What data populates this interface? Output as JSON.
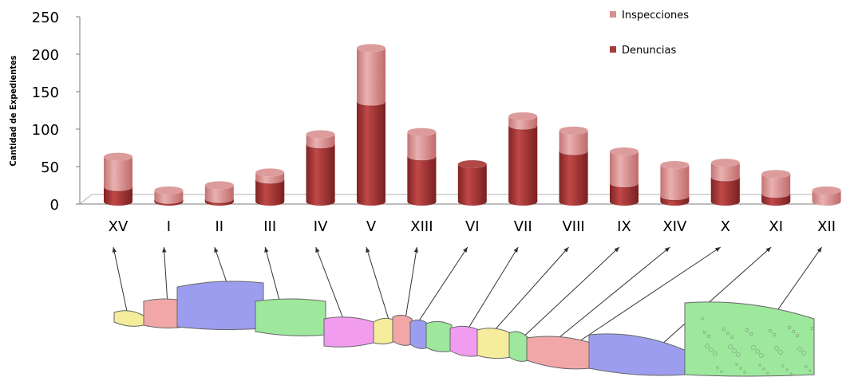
{
  "chart_data": {
    "type": "bar",
    "stacked": true,
    "style": "3d-cylinder",
    "ylabel": "Cantidad de Expedientes",
    "ylim": [
      0,
      250
    ],
    "yticks": [
      "0",
      "50",
      "100",
      "150",
      "200",
      "250"
    ],
    "grid": false,
    "legend_position": "top-right",
    "categories": [
      "XV",
      "I",
      "II",
      "III",
      "IV",
      "V",
      "XIII",
      "VI",
      "VII",
      "VIII",
      "IX",
      "XIV",
      "X",
      "XI",
      "XII"
    ],
    "series": [
      {
        "name": "Denuncias",
        "color": "#a83a3a",
        "values": [
          19,
          2,
          3,
          29,
          76,
          133,
          60,
          50,
          101,
          67,
          24,
          7,
          32,
          10,
          0
        ]
      },
      {
        "name": "Inspecciones",
        "color": "#d98f8f",
        "values": [
          41,
          13,
          19,
          10,
          14,
          72,
          33,
          0,
          13,
          28,
          43,
          42,
          20,
          27,
          15
        ]
      }
    ],
    "legend_order": [
      "Inspecciones",
      "Denuncias"
    ]
  },
  "map": {
    "region_colors": [
      "#f5ec9c",
      "#f1a7a7",
      "#9d9df0",
      "#9de89d",
      "#f29cf0",
      "#f5ec9c",
      "#f1a7a7",
      "#9d9df0",
      "#9de89d",
      "#f29cf0",
      "#f5ec9c",
      "#9de89d",
      "#f1a7a7",
      "#9d9df0",
      "#9de89d"
    ]
  }
}
